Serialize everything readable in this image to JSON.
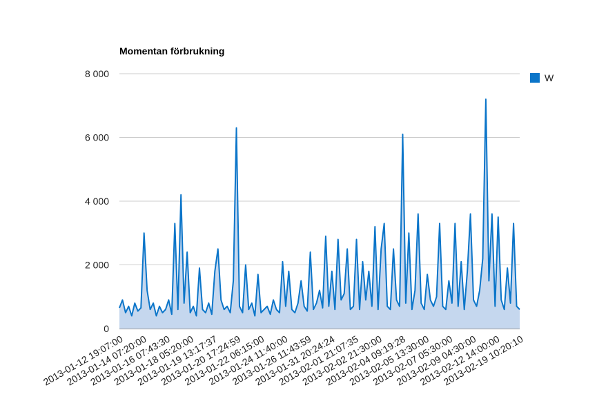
{
  "chart_data": {
    "type": "area",
    "title": "Momentan förbrukning",
    "xlabel": "",
    "ylabel": "",
    "ylim": [
      0,
      8000
    ],
    "yticks": [
      0,
      2000,
      4000,
      6000,
      8000
    ],
    "ytick_labels": [
      "0",
      "2 000",
      "4 000",
      "6 000",
      "8 000"
    ],
    "xtick_labels": [
      "2013-01-12 19:07:00",
      "2013-01-14 07:20:00",
      "2013-01-16 07:43:30",
      "2013-01-18 05:20:00",
      "2013-01-19 13:17:37",
      "2013-01-20 17:24:59",
      "2013-01-22 06:15:00",
      "2013-01-24 11:40:00",
      "2013-01-26 11:43:59",
      "2013-01-31 20:24:24",
      "2013-02-01 21:07:35",
      "2013-02-02 21:30:00",
      "2013-02-04 09:19:28",
      "2013-02-05 13:30:00",
      "2013-02-07 05:30:00",
      "2013-02-09 04:30:00",
      "2013-02-12 14:00:00",
      "2013-02-19 10:20:10"
    ],
    "legend": "right",
    "grid": true,
    "series": [
      {
        "name": "W",
        "color": "#0b75c9",
        "fill": "#c5d7ee",
        "values": [
          650,
          900,
          500,
          700,
          400,
          800,
          550,
          650,
          3000,
          1200,
          600,
          800,
          400,
          700,
          500,
          600,
          900,
          450,
          3300,
          600,
          4200,
          800,
          2400,
          500,
          700,
          400,
          1900,
          600,
          500,
          800,
          450,
          1800,
          2500,
          900,
          600,
          700,
          500,
          1500,
          6300,
          700,
          500,
          2000,
          600,
          800,
          400,
          1700,
          500,
          600,
          700,
          450,
          900,
          600,
          500,
          2100,
          700,
          1800,
          600,
          500,
          800,
          1500,
          700,
          550,
          2400,
          600,
          800,
          1200,
          650,
          2900,
          700,
          1800,
          600,
          2800,
          900,
          1100,
          2500,
          600,
          700,
          2800,
          600,
          2100,
          900,
          1800,
          700,
          3200,
          600,
          2500,
          3300,
          700,
          600,
          2500,
          900,
          700,
          6100,
          800,
          3000,
          600,
          1200,
          3600,
          800,
          600,
          1700,
          900,
          700,
          1000,
          3300,
          700,
          600,
          1500,
          800,
          3300,
          700,
          2100,
          600,
          1800,
          3600,
          900,
          700,
          1200,
          2200,
          7200,
          1500,
          3600,
          700,
          3500,
          900,
          600,
          1900,
          800,
          3300,
          700,
          600
        ]
      }
    ]
  }
}
